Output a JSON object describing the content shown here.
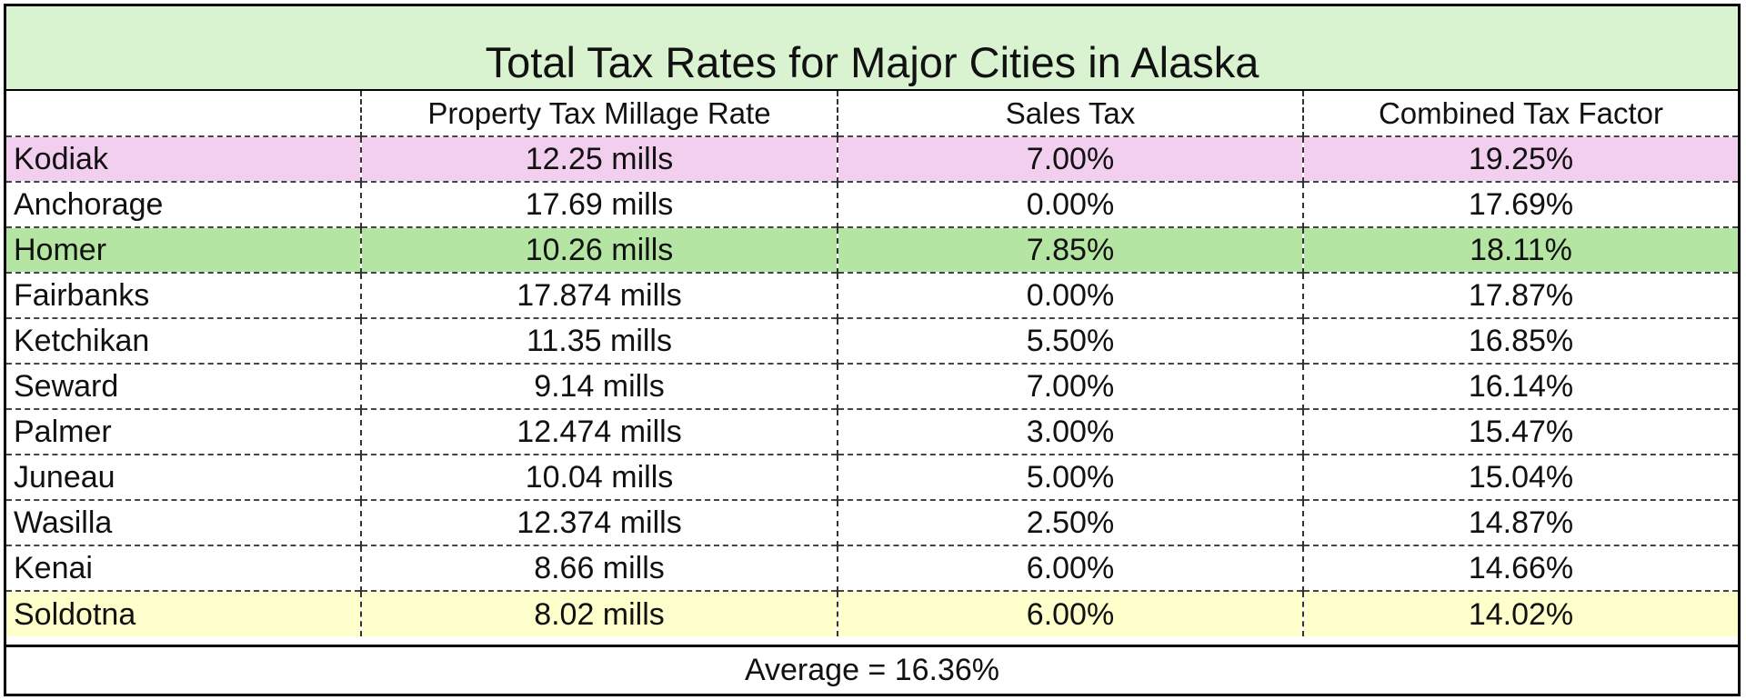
{
  "title": "Total Tax Rates for Major Cities in Alaska",
  "columns": [
    "",
    "Property Tax Millage Rate",
    "Sales Tax",
    "Combined Tax Factor"
  ],
  "rows": [
    {
      "city": "Kodiak",
      "millage": "12.25 mills",
      "sales_tax": "7.00%",
      "combined": "19.25%",
      "highlight": "#f2ceef"
    },
    {
      "city": "Anchorage",
      "millage": "17.69 mills",
      "sales_tax": "0.00%",
      "combined": "17.69%",
      "highlight": "#ffffff"
    },
    {
      "city": "Homer",
      "millage": "10.26 mills",
      "sales_tax": "7.85%",
      "combined": "18.11%",
      "highlight": "#b4e5a2"
    },
    {
      "city": "Fairbanks",
      "millage": "17.874 mills",
      "sales_tax": "0.00%",
      "combined": "17.87%",
      "highlight": "#ffffff"
    },
    {
      "city": "Ketchikan",
      "millage": "11.35 mills",
      "sales_tax": "5.50%",
      "combined": "16.85%",
      "highlight": "#ffffff"
    },
    {
      "city": "Seward",
      "millage": "9.14 mills",
      "sales_tax": "7.00%",
      "combined": "16.14%",
      "highlight": "#ffffff"
    },
    {
      "city": "Palmer",
      "millage": "12.474 mills",
      "sales_tax": "3.00%",
      "combined": "15.47%",
      "highlight": "#ffffff"
    },
    {
      "city": "Juneau",
      "millage": "10.04 mills",
      "sales_tax": "5.00%",
      "combined": "15.04%",
      "highlight": "#ffffff"
    },
    {
      "city": "Wasilla",
      "millage": "12.374 mills",
      "sales_tax": "2.50%",
      "combined": "14.87%",
      "highlight": "#ffffff"
    },
    {
      "city": "Kenai",
      "millage": "8.66 mills",
      "sales_tax": "6.00%",
      "combined": "14.66%",
      "highlight": "#ffffff"
    },
    {
      "city": "Soldotna",
      "millage": "8.02 mills",
      "sales_tax": "6.00%",
      "combined": "14.02%",
      "highlight": "#ffffcc"
    }
  ],
  "average": "Average = 16.36%"
}
